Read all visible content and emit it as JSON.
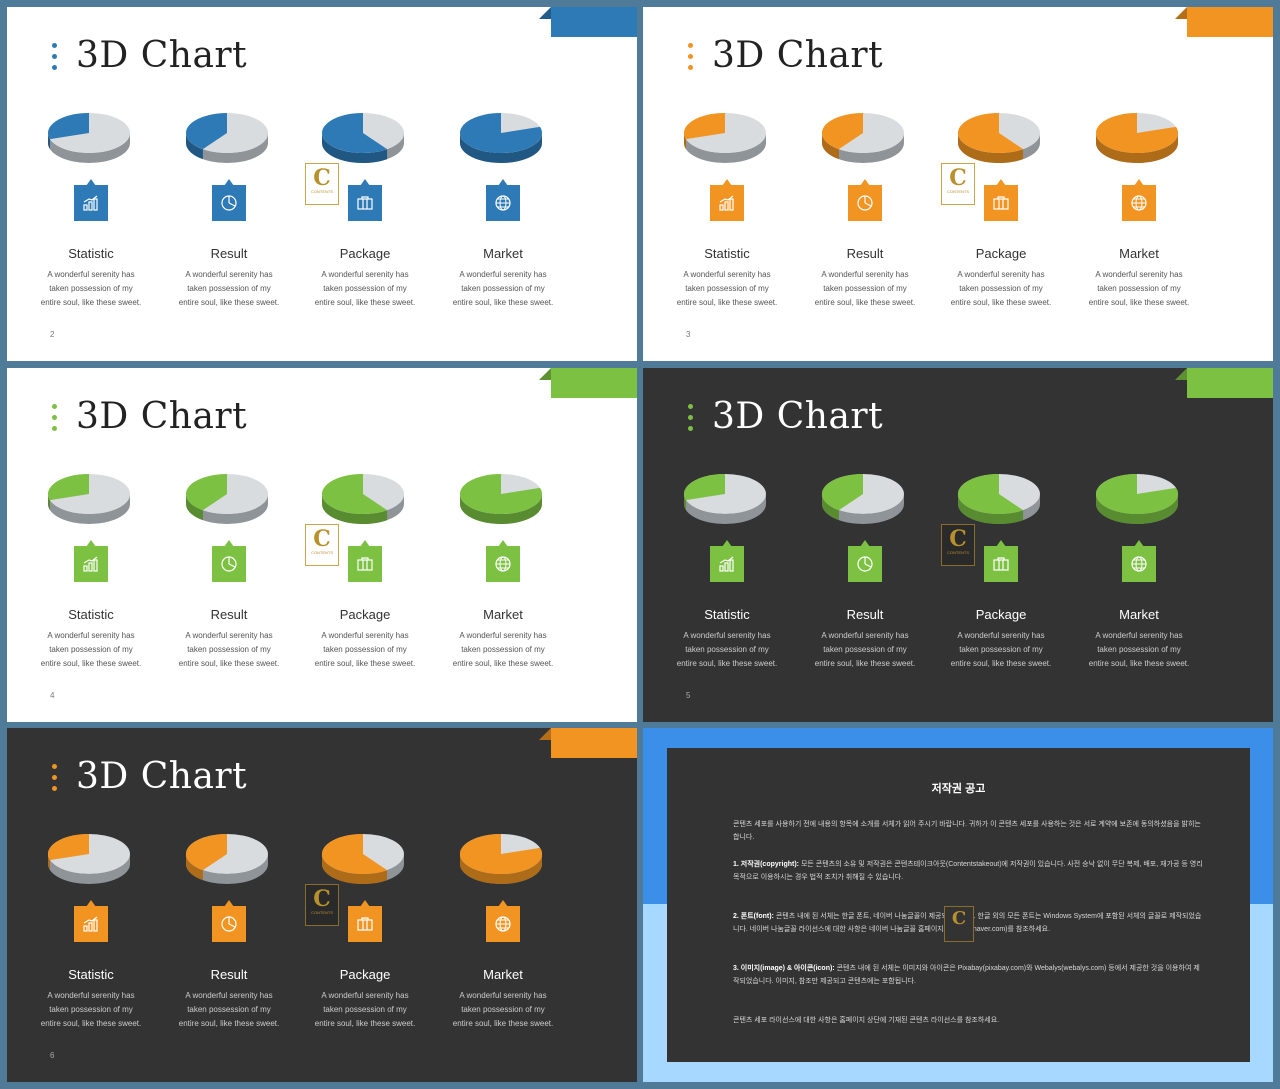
{
  "slides": [
    {
      "id": "s2",
      "theme": "light",
      "accent": "#2e7ab6",
      "page": "2"
    },
    {
      "id": "s3",
      "theme": "light",
      "accent": "#f29421",
      "page": "3"
    },
    {
      "id": "s4",
      "theme": "light",
      "accent": "#7cc142",
      "page": "4"
    },
    {
      "id": "s5",
      "theme": "dark",
      "accent": "#7cc142",
      "page": "5"
    },
    {
      "id": "s6",
      "theme": "dark",
      "accent": "#f29421",
      "page": "6"
    }
  ],
  "title": "3D Chart",
  "items": [
    {
      "label": "Statistic",
      "icon": "bar-chart-icon",
      "share": 0.3
    },
    {
      "label": "Result",
      "icon": "pie-chart-icon",
      "share": 0.4
    },
    {
      "label": "Package",
      "icon": "box-icon",
      "share": 0.6
    },
    {
      "label": "Market",
      "icon": "globe-icon",
      "share": 0.8
    }
  ],
  "desc_lines": [
    "A wonderful  serenity has",
    "taken possession of my",
    "entire soul, like these sweet."
  ],
  "logo": {
    "letter": "C",
    "text": "CONTENTS"
  },
  "notice": {
    "title": "저작권 공고",
    "intro": "콘텐츠 세포를 사용하기 전에 내용의 항목에 소개를 서체가 읽어 주시기 바랍니다. 귀하가 이 콘텐츠 세포를 사용하는 것은 서로 계약에 보존에 동의하셨음을 밝히는 합니다.",
    "p1_head": "1. 저작권(copyright):",
    "p1": "모든 콘텐츠의 소유 및 저작권은 콘텐츠테이크아웃(Contentstakeout)에 저작권이 있습니다. 사전 승낙 없이 무단 복제, 배포, 재가공 등 영리 목적으로 이용하시는 경우 법적 조치가 취해질 수 있습니다.",
    "p2_head": "2. 폰트(font):",
    "p2": "콘텐츠 내에 된 서체는 한글 폰트, 네이버 나눔글꼴이 제공되었습니다. 한글 외의 모든 폰트는 Windows System에 포함된 서체의 글꼴로 제작되었습니다. 네이버 나눔글꼴 라이선스에 대한 사항은 네이버 나눔글꼴 홈페이지(hangeul.naver.com)를 참조하세요.",
    "p3_head": "3. 이미지(image) & 아이콘(icon):",
    "p3": "콘텐츠 내에 된 서체는 이미지와 아이콘은 Pixabay(pixabay.com)와 Webalys(webalys.com) 등에서 제공한 것을 이용하여 제작되었습니다. 이미지, 참조만 제공되고 콘텐츠에는 포함됩니다.",
    "outro": "콘텐츠 세포 라이선스에 대한 사항은 홈페이지 상단에 기재된 콘텐츠 라이선스를 참조하세요."
  }
}
